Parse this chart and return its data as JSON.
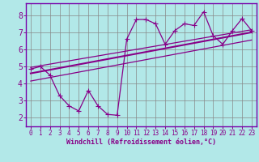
{
  "xlabel": "Windchill (Refroidissement éolien,°C)",
  "ylabel": "",
  "bg_color": "#b2e8e8",
  "grid_color": "#888888",
  "line_color": "#880088",
  "spine_color": "#7700aa",
  "xlim": [
    -0.5,
    23.5
  ],
  "ylim": [
    1.5,
    8.7
  ],
  "xticks": [
    0,
    1,
    2,
    3,
    4,
    5,
    6,
    7,
    8,
    9,
    10,
    11,
    12,
    13,
    14,
    15,
    16,
    17,
    18,
    19,
    20,
    21,
    22,
    23
  ],
  "yticks": [
    2,
    3,
    4,
    5,
    6,
    7,
    8
  ],
  "scatter_x": [
    0,
    1,
    2,
    3,
    4,
    5,
    6,
    7,
    8,
    9,
    10,
    11,
    12,
    13,
    14,
    15,
    16,
    17,
    18,
    19,
    20,
    21,
    22,
    23
  ],
  "scatter_y": [
    4.85,
    5.0,
    4.5,
    3.3,
    2.7,
    2.4,
    3.6,
    2.7,
    2.2,
    2.15,
    6.6,
    7.75,
    7.75,
    7.5,
    6.3,
    7.1,
    7.5,
    7.4,
    8.2,
    6.8,
    6.3,
    7.1,
    7.8,
    7.1
  ],
  "reg_line_x": [
    0,
    23
  ],
  "reg_line_y": [
    4.6,
    7.0
  ],
  "upper_line_x": [
    0,
    23
  ],
  "upper_line_y": [
    4.95,
    7.15
  ],
  "lower_line_x": [
    0,
    23
  ],
  "lower_line_y": [
    4.15,
    6.55
  ]
}
